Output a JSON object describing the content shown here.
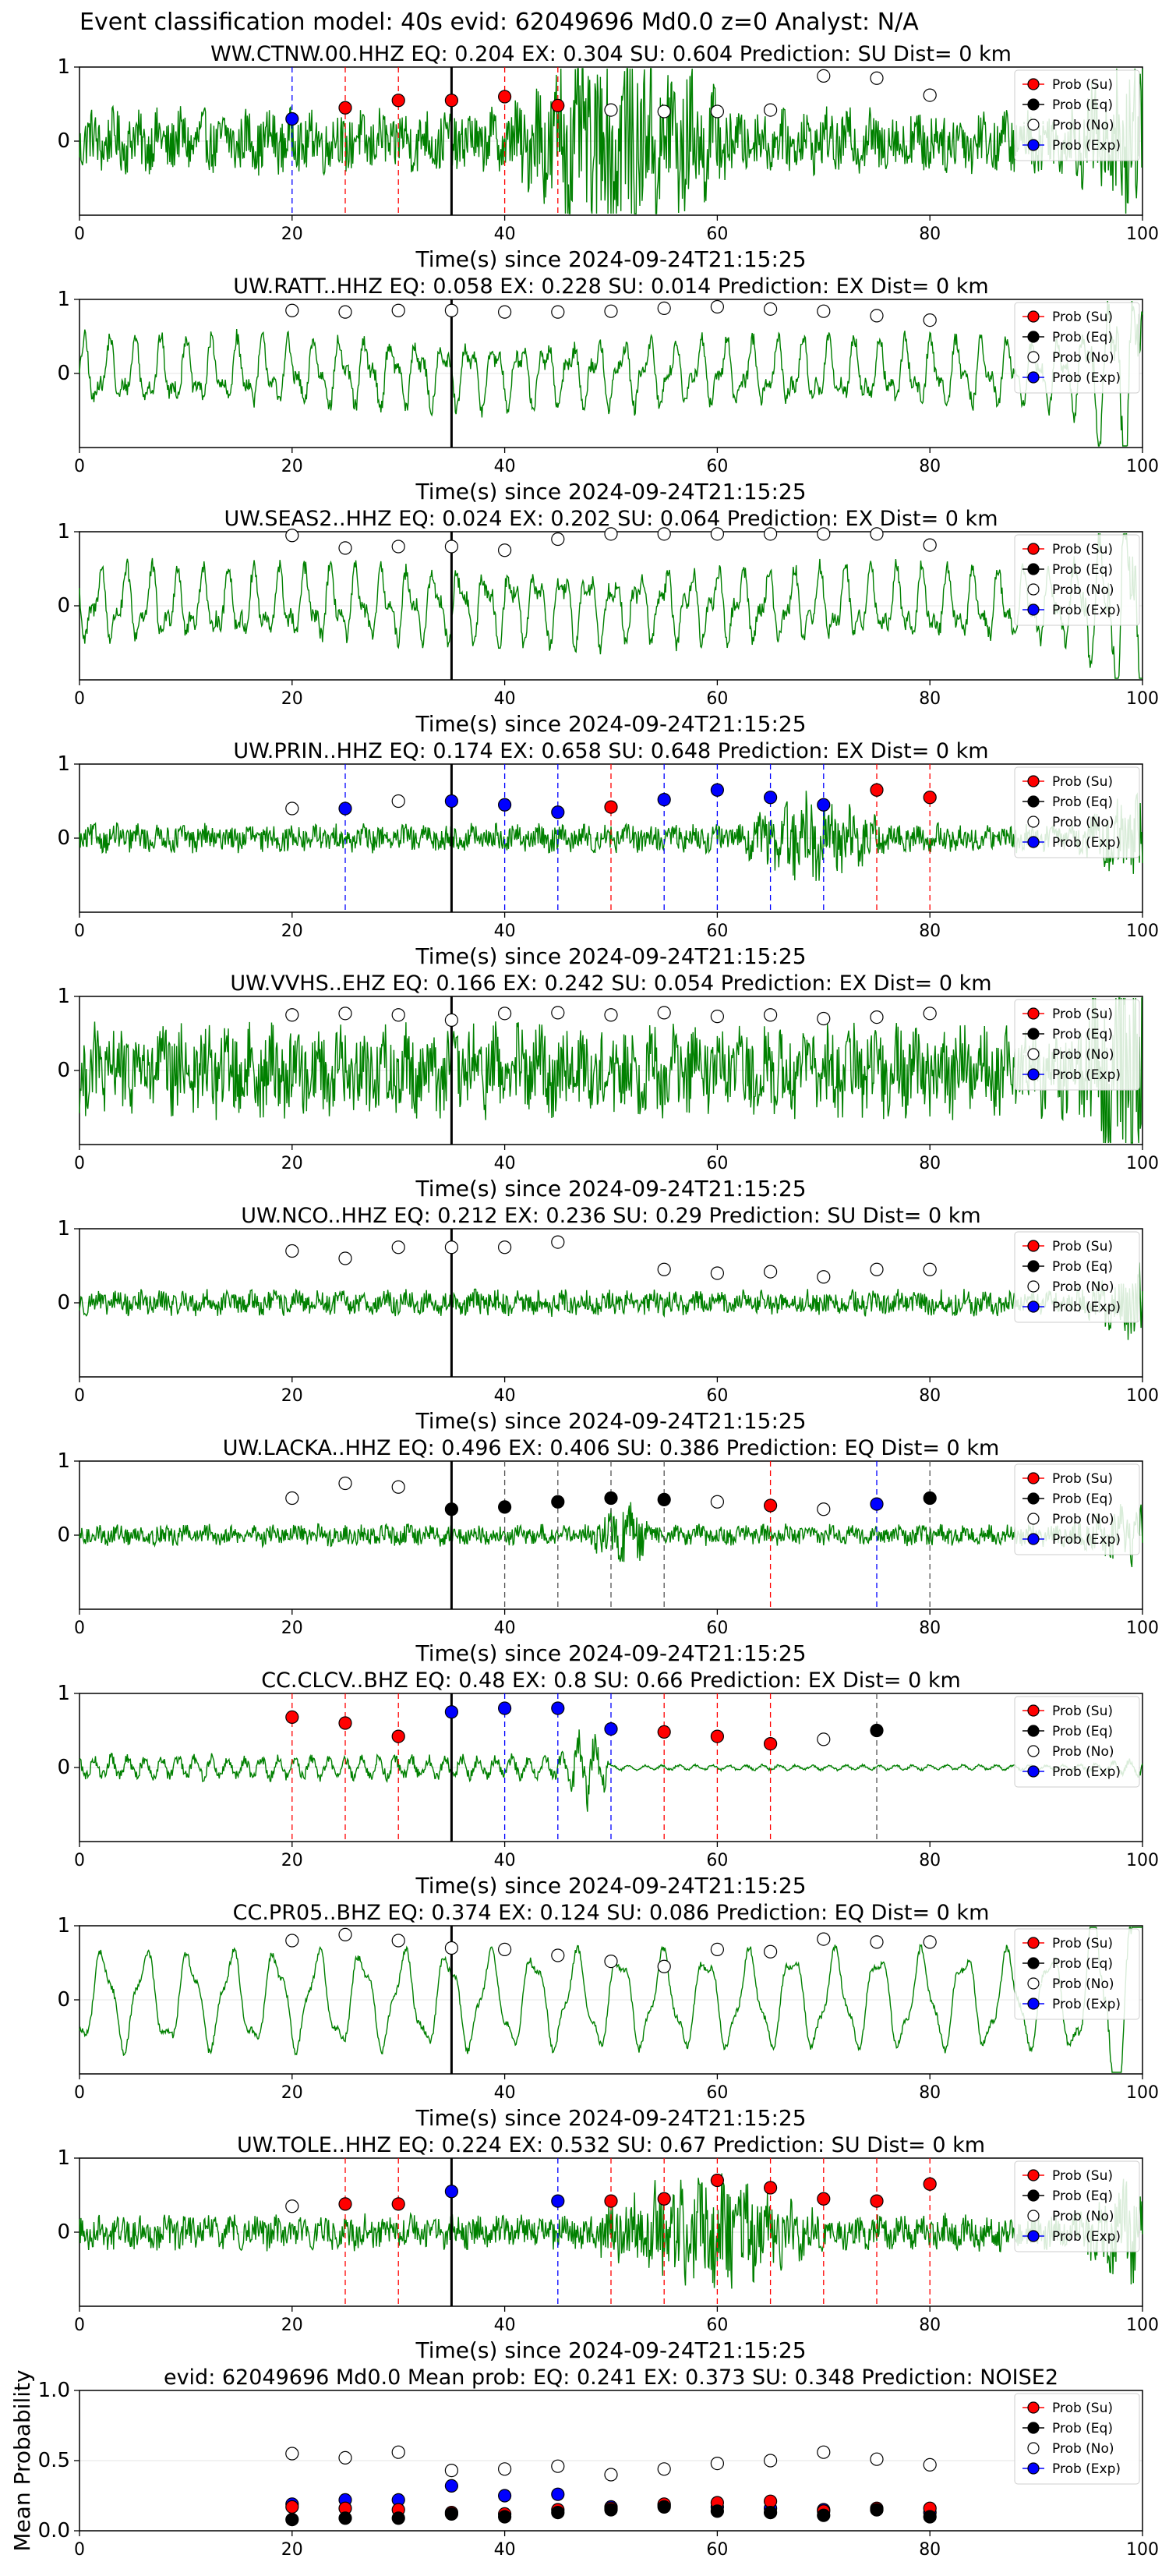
{
  "suptitle": "Event classification model: 40s evid: 62049696 Md0.0 z=0 Analyst: N/A",
  "colors": {
    "waveform": "#008000",
    "su": "#ff0000",
    "eq": "#000000",
    "no": "#ffffff",
    "exp": "#0000ff",
    "grid": "#e6e6e6"
  },
  "legend_labels": [
    "Prob (Su)",
    "Prob (Eq)",
    "Prob (No)",
    "Prob (Exp)"
  ],
  "chart_data": [
    {
      "type": "line",
      "title": "WW.CTNW.00.HHZ   EQ: 0.204  EX: 0.304  SU: 0.604   Prediction: SU    Dist= 0 km",
      "xlabel": "Time(s) since 2024-09-24T21:15:25",
      "xlim": [
        0,
        100
      ],
      "ylim": [
        -1,
        1
      ],
      "xticks": [
        "0",
        "20",
        "40",
        "60",
        "80",
        "100"
      ],
      "yticks": [
        "0",
        "1"
      ],
      "legend": "top-right",
      "grid": true,
      "pick_time": 35,
      "amp": 0.45,
      "burst": [
        40,
        62
      ],
      "style": "noisy",
      "probs": [
        {
          "t": 20,
          "cls": "exp",
          "p": 0.3
        },
        {
          "t": 25,
          "cls": "su",
          "p": 0.45
        },
        {
          "t": 30,
          "cls": "su",
          "p": 0.55
        },
        {
          "t": 35,
          "cls": "su",
          "p": 0.55
        },
        {
          "t": 40,
          "cls": "su",
          "p": 0.6
        },
        {
          "t": 45,
          "cls": "su",
          "p": 0.48
        },
        {
          "t": 50,
          "cls": "no",
          "p": 0.42
        },
        {
          "t": 55,
          "cls": "no",
          "p": 0.4
        },
        {
          "t": 60,
          "cls": "no",
          "p": 0.4
        },
        {
          "t": 65,
          "cls": "no",
          "p": 0.42
        },
        {
          "t": 70,
          "cls": "no",
          "p": 0.88
        },
        {
          "t": 75,
          "cls": "no",
          "p": 0.85
        },
        {
          "t": 80,
          "cls": "no",
          "p": 0.62
        }
      ]
    },
    {
      "type": "line",
      "title": "UW.RATT..HHZ   EQ: 0.058  EX: 0.228  SU: 0.014   Prediction: EX    Dist= 0 km",
      "xlabel": "Time(s) since 2024-09-24T21:15:25",
      "xlim": [
        0,
        100
      ],
      "ylim": [
        -1,
        1
      ],
      "xticks": [
        "0",
        "20",
        "40",
        "60",
        "80",
        "100"
      ],
      "yticks": [
        "0",
        "1"
      ],
      "legend": "top-right",
      "grid": true,
      "pick_time": 35,
      "amp": 0.6,
      "burst": null,
      "style": "wavy",
      "probs": [
        {
          "t": 20,
          "cls": "no",
          "p": 0.85
        },
        {
          "t": 25,
          "cls": "no",
          "p": 0.83
        },
        {
          "t": 30,
          "cls": "no",
          "p": 0.85
        },
        {
          "t": 35,
          "cls": "no",
          "p": 0.85
        },
        {
          "t": 40,
          "cls": "no",
          "p": 0.83
        },
        {
          "t": 45,
          "cls": "no",
          "p": 0.83
        },
        {
          "t": 50,
          "cls": "no",
          "p": 0.84
        },
        {
          "t": 55,
          "cls": "no",
          "p": 0.88
        },
        {
          "t": 60,
          "cls": "no",
          "p": 0.9
        },
        {
          "t": 65,
          "cls": "no",
          "p": 0.87
        },
        {
          "t": 70,
          "cls": "no",
          "p": 0.84
        },
        {
          "t": 75,
          "cls": "no",
          "p": 0.78
        },
        {
          "t": 80,
          "cls": "no",
          "p": 0.72
        }
      ]
    },
    {
      "type": "line",
      "title": "UW.SEAS2..HHZ   EQ: 0.024  EX: 0.202  SU: 0.064   Prediction: EX    Dist= 0 km",
      "xlabel": "Time(s) since 2024-09-24T21:15:25",
      "xlim": [
        0,
        100
      ],
      "ylim": [
        -1,
        1
      ],
      "xticks": [
        "0",
        "20",
        "40",
        "60",
        "80",
        "100"
      ],
      "yticks": [
        "0",
        "1"
      ],
      "legend": "top-right",
      "grid": true,
      "pick_time": 35,
      "amp": 0.65,
      "burst": null,
      "style": "wavy",
      "probs": [
        {
          "t": 20,
          "cls": "no",
          "p": 0.95
        },
        {
          "t": 25,
          "cls": "no",
          "p": 0.78
        },
        {
          "t": 30,
          "cls": "no",
          "p": 0.8
        },
        {
          "t": 35,
          "cls": "no",
          "p": 0.8
        },
        {
          "t": 40,
          "cls": "no",
          "p": 0.75
        },
        {
          "t": 45,
          "cls": "no",
          "p": 0.9
        },
        {
          "t": 50,
          "cls": "no",
          "p": 0.97
        },
        {
          "t": 55,
          "cls": "no",
          "p": 0.97
        },
        {
          "t": 60,
          "cls": "no",
          "p": 0.97
        },
        {
          "t": 65,
          "cls": "no",
          "p": 0.97
        },
        {
          "t": 70,
          "cls": "no",
          "p": 0.97
        },
        {
          "t": 75,
          "cls": "no",
          "p": 0.97
        },
        {
          "t": 80,
          "cls": "no",
          "p": 0.82
        }
      ]
    },
    {
      "type": "line",
      "title": "UW.PRIN..HHZ   EQ: 0.174  EX: 0.658  SU: 0.648   Prediction: EX    Dist= 0 km",
      "xlabel": "Time(s) since 2024-09-24T21:15:25",
      "xlim": [
        0,
        100
      ],
      "ylim": [
        -1,
        1
      ],
      "xticks": [
        "0",
        "20",
        "40",
        "60",
        "80",
        "100"
      ],
      "yticks": [
        "0",
        "1"
      ],
      "legend": "top-right",
      "grid": true,
      "pick_time": 35,
      "amp": 0.2,
      "burst": [
        62,
        76
      ],
      "style": "noisy",
      "probs": [
        {
          "t": 20,
          "cls": "no",
          "p": 0.4
        },
        {
          "t": 25,
          "cls": "exp",
          "p": 0.4
        },
        {
          "t": 30,
          "cls": "no",
          "p": 0.5
        },
        {
          "t": 35,
          "cls": "exp",
          "p": 0.5
        },
        {
          "t": 40,
          "cls": "exp",
          "p": 0.45
        },
        {
          "t": 45,
          "cls": "exp",
          "p": 0.35
        },
        {
          "t": 50,
          "cls": "su",
          "p": 0.42
        },
        {
          "t": 55,
          "cls": "exp",
          "p": 0.52
        },
        {
          "t": 60,
          "cls": "exp",
          "p": 0.65
        },
        {
          "t": 65,
          "cls": "exp",
          "p": 0.55
        },
        {
          "t": 70,
          "cls": "exp",
          "p": 0.45
        },
        {
          "t": 75,
          "cls": "su",
          "p": 0.65
        },
        {
          "t": 80,
          "cls": "su",
          "p": 0.55
        }
      ]
    },
    {
      "type": "line",
      "title": "UW.VVHS..EHZ   EQ: 0.166  EX: 0.242  SU: 0.054   Prediction: EX    Dist= 0 km",
      "xlabel": "Time(s) since 2024-09-24T21:15:25",
      "xlim": [
        0,
        100
      ],
      "ylim": [
        -1,
        1
      ],
      "xticks": [
        "0",
        "20",
        "40",
        "60",
        "80",
        "100"
      ],
      "yticks": [
        "0",
        "1"
      ],
      "legend": "top-right",
      "grid": true,
      "pick_time": 35,
      "amp": 0.65,
      "burst": null,
      "style": "noisy",
      "probs": [
        {
          "t": 20,
          "cls": "no",
          "p": 0.75
        },
        {
          "t": 25,
          "cls": "no",
          "p": 0.77
        },
        {
          "t": 30,
          "cls": "no",
          "p": 0.75
        },
        {
          "t": 35,
          "cls": "no",
          "p": 0.68
        },
        {
          "t": 40,
          "cls": "no",
          "p": 0.77
        },
        {
          "t": 45,
          "cls": "no",
          "p": 0.78
        },
        {
          "t": 50,
          "cls": "no",
          "p": 0.75
        },
        {
          "t": 55,
          "cls": "no",
          "p": 0.78
        },
        {
          "t": 60,
          "cls": "no",
          "p": 0.73
        },
        {
          "t": 65,
          "cls": "no",
          "p": 0.75
        },
        {
          "t": 70,
          "cls": "no",
          "p": 0.7
        },
        {
          "t": 75,
          "cls": "no",
          "p": 0.72
        },
        {
          "t": 80,
          "cls": "no",
          "p": 0.77
        }
      ]
    },
    {
      "type": "line",
      "title": "UW.NCO..HHZ   EQ: 0.212  EX: 0.236  SU: 0.29   Prediction: SU    Dist= 0 km",
      "xlabel": "Time(s) since 2024-09-24T21:15:25",
      "xlim": [
        0,
        100
      ],
      "ylim": [
        -1,
        1
      ],
      "xticks": [
        "0",
        "20",
        "40",
        "60",
        "80",
        "100"
      ],
      "yticks": [
        "0",
        "1"
      ],
      "legend": "top-right",
      "grid": true,
      "pick_time": 35,
      "amp": 0.18,
      "burst": null,
      "style": "noisy",
      "probs": [
        {
          "t": 20,
          "cls": "no",
          "p": 0.7
        },
        {
          "t": 25,
          "cls": "no",
          "p": 0.6
        },
        {
          "t": 30,
          "cls": "no",
          "p": 0.75
        },
        {
          "t": 35,
          "cls": "no",
          "p": 0.75
        },
        {
          "t": 40,
          "cls": "no",
          "p": 0.75
        },
        {
          "t": 45,
          "cls": "no",
          "p": 0.82
        },
        {
          "t": 55,
          "cls": "no",
          "p": 0.45
        },
        {
          "t": 60,
          "cls": "no",
          "p": 0.4
        },
        {
          "t": 65,
          "cls": "no",
          "p": 0.42
        },
        {
          "t": 70,
          "cls": "no",
          "p": 0.35
        },
        {
          "t": 75,
          "cls": "no",
          "p": 0.45
        },
        {
          "t": 80,
          "cls": "no",
          "p": 0.45
        }
      ]
    },
    {
      "type": "line",
      "title": "UW.LACKA..HHZ   EQ: 0.496  EX: 0.406  SU: 0.386   Prediction: EQ    Dist= 0 km",
      "xlabel": "Time(s) since 2024-09-24T21:15:25",
      "xlim": [
        0,
        100
      ],
      "ylim": [
        -1,
        1
      ],
      "xticks": [
        "0",
        "20",
        "40",
        "60",
        "80",
        "100"
      ],
      "yticks": [
        "0",
        "1"
      ],
      "legend": "top-right",
      "grid": true,
      "pick_time": 35,
      "amp": 0.15,
      "burst": [
        48,
        54
      ],
      "style": "noisy",
      "probs": [
        {
          "t": 20,
          "cls": "no",
          "p": 0.5
        },
        {
          "t": 25,
          "cls": "no",
          "p": 0.7
        },
        {
          "t": 30,
          "cls": "no",
          "p": 0.65
        },
        {
          "t": 35,
          "cls": "eq",
          "p": 0.35
        },
        {
          "t": 40,
          "cls": "eq",
          "p": 0.38
        },
        {
          "t": 45,
          "cls": "eq",
          "p": 0.45
        },
        {
          "t": 50,
          "cls": "eq",
          "p": 0.5
        },
        {
          "t": 55,
          "cls": "eq",
          "p": 0.48
        },
        {
          "t": 60,
          "cls": "no",
          "p": 0.45
        },
        {
          "t": 65,
          "cls": "su",
          "p": 0.4
        },
        {
          "t": 70,
          "cls": "no",
          "p": 0.35
        },
        {
          "t": 75,
          "cls": "exp",
          "p": 0.42
        },
        {
          "t": 80,
          "cls": "eq",
          "p": 0.5
        }
      ]
    },
    {
      "type": "line",
      "title": "CC.CLCV..BHZ   EQ: 0.48  EX: 0.8  SU: 0.66   Prediction: EX    Dist= 0 km",
      "xlabel": "Time(s) since 2024-09-24T21:15:25",
      "xlim": [
        0,
        100
      ],
      "ylim": [
        -1,
        1
      ],
      "xticks": [
        "0",
        "20",
        "40",
        "60",
        "80",
        "100"
      ],
      "yticks": [
        "0",
        "1"
      ],
      "legend": "top-right",
      "grid": true,
      "pick_time": 35,
      "amp": 0.3,
      "burst": [
        45,
        50
      ],
      "style": "decay",
      "probs": [
        {
          "t": 20,
          "cls": "su",
          "p": 0.68
        },
        {
          "t": 25,
          "cls": "su",
          "p": 0.6
        },
        {
          "t": 30,
          "cls": "su",
          "p": 0.42
        },
        {
          "t": 35,
          "cls": "exp",
          "p": 0.75
        },
        {
          "t": 40,
          "cls": "exp",
          "p": 0.8
        },
        {
          "t": 45,
          "cls": "exp",
          "p": 0.8
        },
        {
          "t": 50,
          "cls": "exp",
          "p": 0.52
        },
        {
          "t": 55,
          "cls": "su",
          "p": 0.48
        },
        {
          "t": 60,
          "cls": "su",
          "p": 0.42
        },
        {
          "t": 65,
          "cls": "su",
          "p": 0.32
        },
        {
          "t": 70,
          "cls": "no",
          "p": 0.38
        },
        {
          "t": 75,
          "cls": "eq",
          "p": 0.5
        }
      ]
    },
    {
      "type": "line",
      "title": "CC.PR05..BHZ   EQ: 0.374  EX: 0.124  SU: 0.086   Prediction: EQ    Dist= 0 km",
      "xlabel": "Time(s) since 2024-09-24T21:15:25",
      "xlim": [
        0,
        100
      ],
      "ylim": [
        -1,
        1
      ],
      "xticks": [
        "0",
        "20",
        "40",
        "60",
        "80",
        "100"
      ],
      "yticks": [
        "0",
        "1"
      ],
      "legend": "top-right",
      "grid": true,
      "pick_time": 35,
      "amp": 0.75,
      "burst": null,
      "style": "slow",
      "probs": [
        {
          "t": 20,
          "cls": "no",
          "p": 0.8
        },
        {
          "t": 25,
          "cls": "no",
          "p": 0.88
        },
        {
          "t": 30,
          "cls": "no",
          "p": 0.8
        },
        {
          "t": 35,
          "cls": "no",
          "p": 0.7
        },
        {
          "t": 40,
          "cls": "no",
          "p": 0.68
        },
        {
          "t": 45,
          "cls": "no",
          "p": 0.6
        },
        {
          "t": 50,
          "cls": "no",
          "p": 0.52
        },
        {
          "t": 55,
          "cls": "no",
          "p": 0.45
        },
        {
          "t": 60,
          "cls": "no",
          "p": 0.68
        },
        {
          "t": 65,
          "cls": "no",
          "p": 0.65
        },
        {
          "t": 70,
          "cls": "no",
          "p": 0.82
        },
        {
          "t": 75,
          "cls": "no",
          "p": 0.78
        },
        {
          "t": 80,
          "cls": "no",
          "p": 0.78
        }
      ]
    },
    {
      "type": "line",
      "title": "UW.TOLE..HHZ   EQ: 0.224  EX: 0.532  SU: 0.67   Prediction: SU    Dist= 0 km",
      "xlabel": "Time(s) since 2024-09-24T21:15:25",
      "xlim": [
        0,
        100
      ],
      "ylim": [
        -1,
        1
      ],
      "xticks": [
        "0",
        "20",
        "40",
        "60",
        "80",
        "100"
      ],
      "yticks": [
        "0",
        "1"
      ],
      "legend": "top-right",
      "grid": true,
      "pick_time": 35,
      "amp": 0.25,
      "burst": [
        48,
        70
      ],
      "style": "noisy",
      "probs": [
        {
          "t": 20,
          "cls": "no",
          "p": 0.35
        },
        {
          "t": 25,
          "cls": "su",
          "p": 0.38
        },
        {
          "t": 30,
          "cls": "su",
          "p": 0.38
        },
        {
          "t": 35,
          "cls": "exp",
          "p": 0.55
        },
        {
          "t": 45,
          "cls": "exp",
          "p": 0.42
        },
        {
          "t": 50,
          "cls": "su",
          "p": 0.42
        },
        {
          "t": 55,
          "cls": "su",
          "p": 0.45
        },
        {
          "t": 60,
          "cls": "su",
          "p": 0.7
        },
        {
          "t": 65,
          "cls": "su",
          "p": 0.6
        },
        {
          "t": 70,
          "cls": "su",
          "p": 0.45
        },
        {
          "t": 75,
          "cls": "su",
          "p": 0.42
        },
        {
          "t": 80,
          "cls": "su",
          "p": 0.65
        }
      ]
    },
    {
      "type": "scatter",
      "title": "evid: 62049696  Md0.0   Mean prob:   EQ: 0.241  EX: 0.373  SU: 0.348   Prediction: NOISE2",
      "ylabel": "Mean Probability",
      "xlim": [
        0,
        100
      ],
      "ylim": [
        0,
        1
      ],
      "xticks": [
        "0",
        "20",
        "40",
        "60",
        "80",
        "100"
      ],
      "yticks": [
        "0.0",
        "0.5",
        "1.0"
      ],
      "legend": "top-right",
      "grid": true,
      "x": [
        20,
        25,
        30,
        35,
        40,
        45,
        50,
        55,
        60,
        65,
        70,
        75,
        80
      ],
      "series": [
        {
          "name": "Prob (No)",
          "cls": "no",
          "values": [
            0.55,
            0.52,
            0.56,
            0.43,
            0.44,
            0.46,
            0.4,
            0.44,
            0.48,
            0.5,
            0.56,
            0.51,
            0.47
          ]
        },
        {
          "name": "Prob (Exp)",
          "cls": "exp",
          "values": [
            0.19,
            0.22,
            0.22,
            0.32,
            0.25,
            0.26,
            0.17,
            0.18,
            0.17,
            0.16,
            0.15,
            0.15,
            0.13
          ]
        },
        {
          "name": "Prob (Su)",
          "cls": "su",
          "values": [
            0.17,
            0.16,
            0.15,
            0.13,
            0.12,
            0.15,
            0.16,
            0.19,
            0.2,
            0.21,
            0.14,
            0.16,
            0.16
          ]
        },
        {
          "name": "Prob (Eq)",
          "cls": "eq",
          "values": [
            0.08,
            0.09,
            0.09,
            0.12,
            0.1,
            0.13,
            0.15,
            0.17,
            0.14,
            0.13,
            0.11,
            0.15,
            0.1
          ]
        }
      ]
    }
  ]
}
